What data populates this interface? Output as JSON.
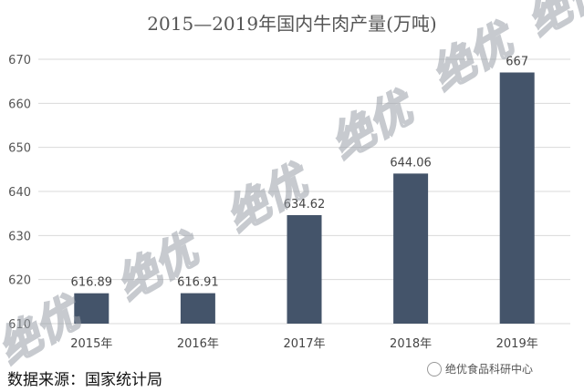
{
  "chart_data": {
    "type": "bar",
    "title": "2015—2019年国内牛肉产量(万吨)",
    "categories": [
      "2015年",
      "2016年",
      "2017年",
      "2018年",
      "2019年"
    ],
    "values": [
      616.89,
      616.91,
      634.62,
      644.06,
      667
    ],
    "value_labels": [
      "616.89",
      "616.91",
      "634.62",
      "644.06",
      "667"
    ],
    "ylim": [
      610,
      670
    ],
    "yticks": [
      610,
      620,
      630,
      640,
      650,
      660,
      670
    ],
    "grid": true,
    "bar_color": "#44546a"
  },
  "source_text": "数据来源：国家统计局",
  "brand_text": "绝优食品科研中心",
  "watermark_text": "绝优"
}
